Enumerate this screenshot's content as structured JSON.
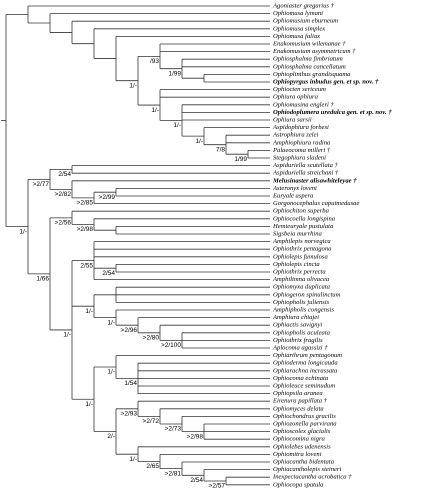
{
  "taxa": [
    "Agoniaster gregarius †",
    "Ophiomusa lymani",
    "Ophiomusium eburneum",
    "Ophiomusa simplex",
    "Ophiomusa faliax",
    "Enakomusium wilemanae †",
    "Enakomusium asymmetricum †",
    "Ophiosphalma fimbriatum",
    "Ophiosphalma cancellatum",
    "Ophioplinthus grandisquama",
    "Ophiopyrgus inbudus gen. et sp. nov. †",
    "Ophiocten sericeum",
    "Ophiura ophiura",
    "Ophiomusina engleri †",
    "Ophiodoplumera uredulca gen. et sp. nov. †",
    "Ophiura sarsii",
    "Aspidophiura forbesi",
    "Astrophiura zelei",
    "Amphiophiura radina",
    "Palaeocoma milleri †",
    "Stegophiura sladeni",
    "Aspiduriella scutellata †",
    "Aspiduriella streichani †",
    "Melusinaster alisawhiteleyae †",
    "Asteronyx loveni",
    "Euryale aspera",
    "Gorgonocephalus caputmedusae",
    "Ophiochiton superba",
    "Ophiocoella longispina",
    "Hemieuryale pustulata",
    "Sigsbeia murrhina",
    "Amphilepis norvegica",
    "Ophiothrix pentagona",
    "Ophiolepis fumulosa",
    "Ophiolepis cincta",
    "Ophiothrix perrecta",
    "Amphilimna olivacea",
    "Ophiomyxa duplicata",
    "Ophiogeron spinulinctum",
    "Ophiopholis juliensis",
    "Amphipholis congensis",
    "Amphiura chiajei",
    "Ophiactis savignyi",
    "Ophiopholis aculeata",
    "Ophiothrix fragilis",
    "Aplocoma agassizi †",
    "Ophiarthrum pentagonum",
    "Ophioderma longicauda",
    "Ophiarachna incrassata",
    "Ophiocoma echinata",
    "Ophioleuce seminudum",
    "Ophiopsila aranea",
    "Eirenura papillata †",
    "Ophiomyces delata",
    "Ophiochondrus gracilis",
    "Ophiozonella parvirana",
    "Ophioscolex glacialis",
    "Ophiocomina nigra",
    "Ophiolebes udenensis",
    "Ophiomitra loveni",
    "Ophiacantha bidentata",
    "Ophiacantholepis steineri",
    "Inexpectacantha acrobatica †",
    "Ophiocopa spatula"
  ],
  "support_labels": [
    "1/-",
    "/93",
    "1/-",
    "1/99",
    "1/-",
    "1/-",
    "7/8",
    "1/-",
    "1/99",
    "2/54",
    ">2/77",
    ">2/82",
    ">2/85",
    ">2/99",
    ">2/56",
    ">2/98",
    "1/-",
    "2/55",
    "2/54",
    "1/-",
    "1/66",
    "1/-",
    ">2/96",
    ">2/80",
    ">2/100",
    "1/-",
    "1/54",
    ">2/93",
    ">2/72",
    ">2/73",
    ">2/98",
    "2/-",
    "1/-",
    "2/65",
    ">2/81",
    "2/54",
    ">2/57",
    "1/-"
  ]
}
